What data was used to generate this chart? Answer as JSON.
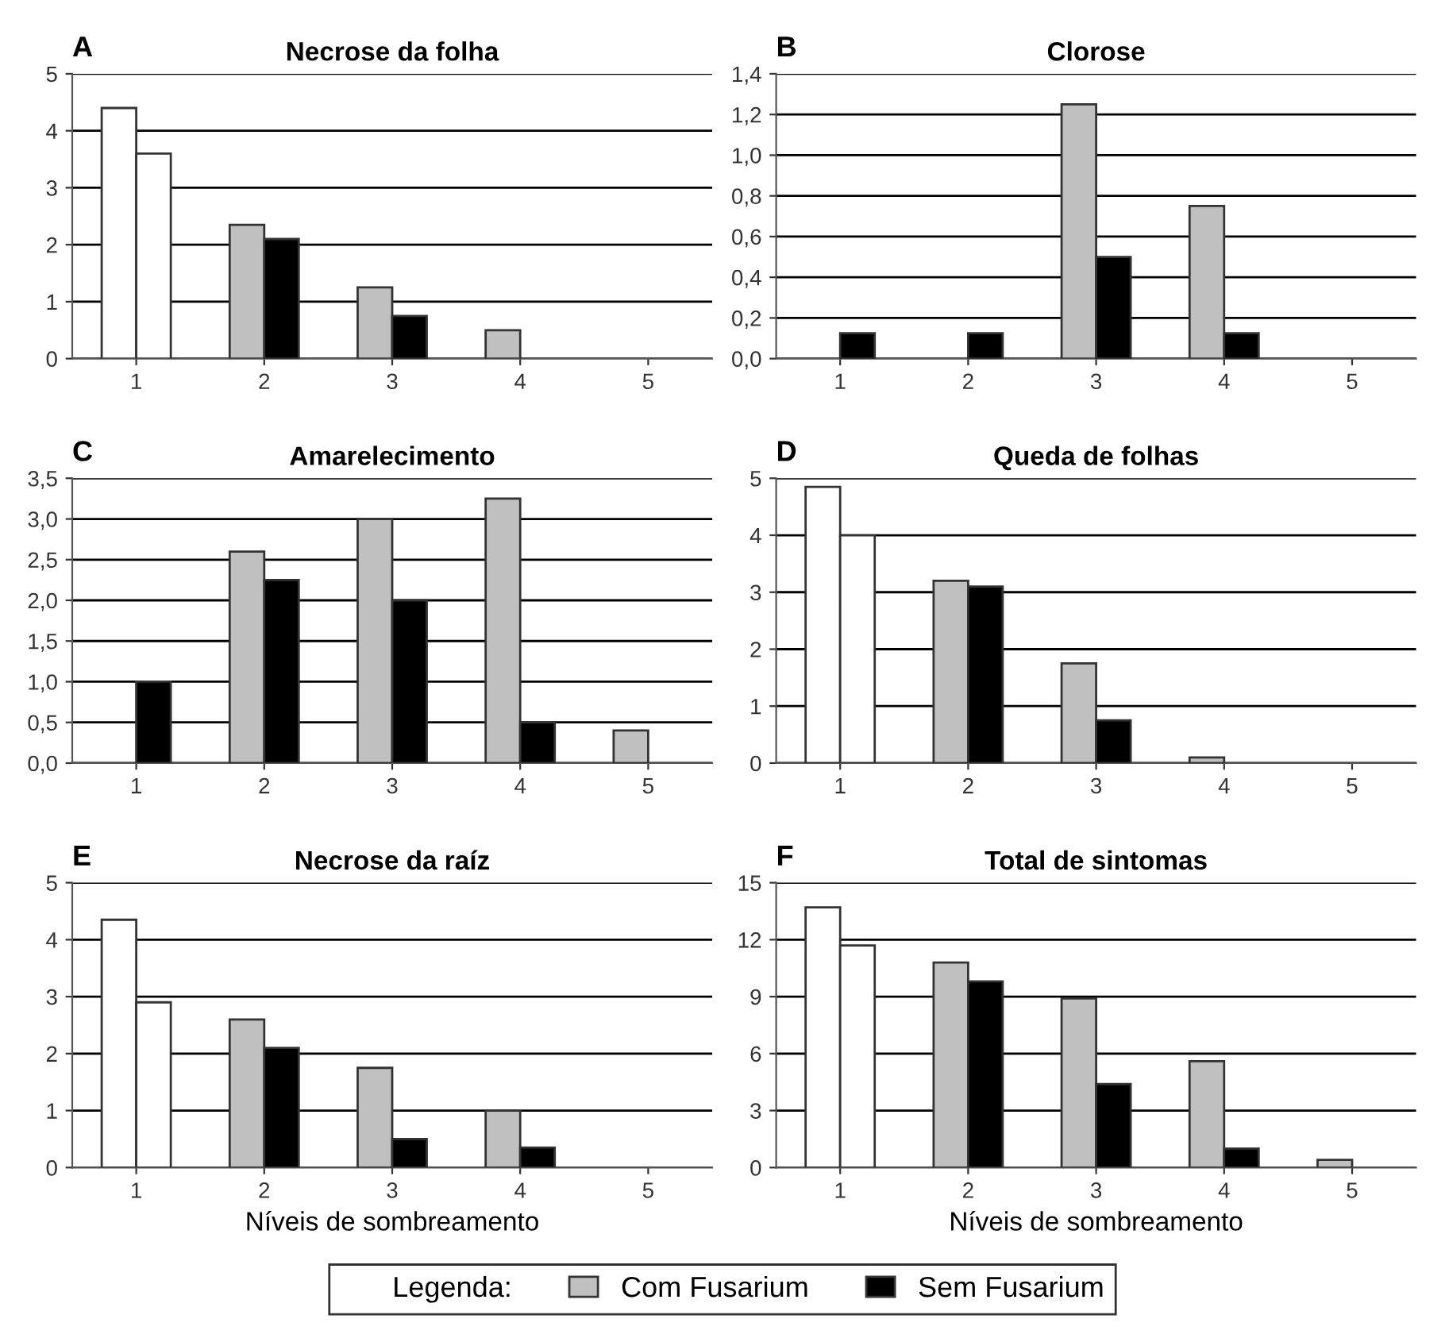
{
  "chart_data": [
    {
      "type": "bar",
      "title": "Necrose da folha",
      "annotations": [
        "A"
      ],
      "categories": [
        "1",
        "2",
        "3",
        "4",
        "5"
      ],
      "grid": "y",
      "ylim": [
        0,
        5
      ],
      "yticks": [
        0,
        1,
        2,
        3,
        4,
        5
      ],
      "series": [
        {
          "color": "#c0c0c0",
          "colors": [
            "#ffffff",
            "#c0c0c0",
            "#c0c0c0",
            "#c0c0c0",
            "#c0c0c0"
          ],
          "values": [
            4.4,
            2.35,
            1.25,
            0.5,
            null
          ]
        },
        {
          "color": "#000000",
          "colors": [
            "#ffffff",
            "#000000",
            "#000000",
            "#000000",
            "#000000"
          ],
          "values": [
            3.6,
            2.1,
            0.75,
            null,
            null
          ]
        }
      ]
    },
    {
      "type": "bar",
      "title": "Clorose",
      "annotations": [
        "B"
      ],
      "categories": [
        "1",
        "2",
        "3",
        "4",
        "5"
      ],
      "grid": "y",
      "ylim": [
        0,
        1.4
      ],
      "yticks": [
        {
          "value": 0,
          "label": "0,0"
        },
        {
          "value": 0.2,
          "label": "0,2"
        },
        {
          "value": 0.4,
          "label": "0,4"
        },
        {
          "value": 0.6,
          "label": "0,6"
        },
        {
          "value": 0.8,
          "label": "0,8"
        },
        {
          "value": 1.0,
          "label": "1,0"
        },
        {
          "value": 1.2,
          "label": "1,2"
        },
        {
          "value": 1.4,
          "label": "1,4"
        }
      ],
      "series": [
        {
          "color": "#c0c0c0",
          "values": [
            null,
            null,
            1.25,
            0.75,
            null
          ]
        },
        {
          "color": "#000000",
          "values": [
            0.125,
            0.125,
            0.5,
            0.125,
            null
          ]
        }
      ]
    },
    {
      "type": "bar",
      "title": "Amarelecimento",
      "annotations": [
        "C"
      ],
      "categories": [
        "1",
        "2",
        "3",
        "4",
        "5"
      ],
      "grid": "y",
      "ylim": [
        0,
        3.5
      ],
      "yticks": [
        {
          "value": 0,
          "label": "0,0"
        },
        {
          "value": 0.5,
          "label": "0,5"
        },
        {
          "value": 1.0,
          "label": "1,0"
        },
        {
          "value": 1.5,
          "label": "1,5"
        },
        {
          "value": 2.0,
          "label": "2,0"
        },
        {
          "value": 2.5,
          "label": "2,5"
        },
        {
          "value": 3.0,
          "label": "3,0"
        },
        {
          "value": 3.5,
          "label": "3,5"
        }
      ],
      "series": [
        {
          "color": "#c0c0c0",
          "values": [
            null,
            2.6,
            3.0,
            3.25,
            0.4
          ]
        },
        {
          "color": "#000000",
          "values": [
            1.0,
            2.25,
            2.0,
            0.5,
            null
          ]
        }
      ]
    },
    {
      "type": "bar",
      "title": "Queda de folhas",
      "annotations": [
        "D"
      ],
      "categories": [
        "1",
        "2",
        "3",
        "4",
        "5"
      ],
      "grid": "y",
      "ylim": [
        0,
        5
      ],
      "yticks": [
        0,
        1,
        2,
        3,
        4,
        5
      ],
      "series": [
        {
          "color": "#c0c0c0",
          "colors": [
            "#ffffff",
            "#c0c0c0",
            "#c0c0c0",
            "#c0c0c0",
            "#c0c0c0"
          ],
          "values": [
            4.85,
            3.2,
            1.75,
            0.1,
            null
          ]
        },
        {
          "color": "#000000",
          "colors": [
            "#ffffff",
            "#000000",
            "#000000",
            "#000000",
            "#000000"
          ],
          "values": [
            4.0,
            3.1,
            0.75,
            null,
            null
          ]
        }
      ]
    },
    {
      "type": "bar",
      "title": "Necrose da raíz",
      "annotations": [
        "E"
      ],
      "xlabel": "Níveis de sombreamento",
      "categories": [
        "1",
        "2",
        "3",
        "4",
        "5"
      ],
      "grid": "y",
      "ylim": [
        0,
        5
      ],
      "yticks": [
        0,
        1,
        2,
        3,
        4,
        5
      ],
      "series": [
        {
          "color": "#c0c0c0",
          "colors": [
            "#ffffff",
            "#c0c0c0",
            "#c0c0c0",
            "#c0c0c0",
            "#c0c0c0"
          ],
          "values": [
            4.35,
            2.6,
            1.75,
            1.0,
            null
          ]
        },
        {
          "color": "#000000",
          "colors": [
            "#ffffff",
            "#000000",
            "#000000",
            "#000000",
            "#000000"
          ],
          "values": [
            2.9,
            2.1,
            0.5,
            0.35,
            null
          ]
        }
      ]
    },
    {
      "type": "bar",
      "title": "Total de sintomas",
      "annotations": [
        "F"
      ],
      "xlabel": "Níveis de sombreamento",
      "categories": [
        "1",
        "2",
        "3",
        "4",
        "5"
      ],
      "grid": "y",
      "ylim": [
        0,
        15
      ],
      "yticks": [
        0,
        3,
        6,
        9,
        12,
        15
      ],
      "legend": "bottom",
      "legend_title": "Legenda:",
      "series": [
        {
          "name": "Com Fusarium",
          "color": "#c0c0c0",
          "colors": [
            "#ffffff",
            "#c0c0c0",
            "#c0c0c0",
            "#c0c0c0",
            "#c0c0c0"
          ],
          "values": [
            13.7,
            10.8,
            8.9,
            5.6,
            0.4
          ]
        },
        {
          "name": "Sem Fusarium",
          "color": "#000000",
          "colors": [
            "#ffffff",
            "#000000",
            "#000000",
            "#000000",
            "#000000"
          ],
          "values": [
            11.7,
            9.8,
            4.4,
            1.0,
            null
          ]
        }
      ]
    }
  ]
}
